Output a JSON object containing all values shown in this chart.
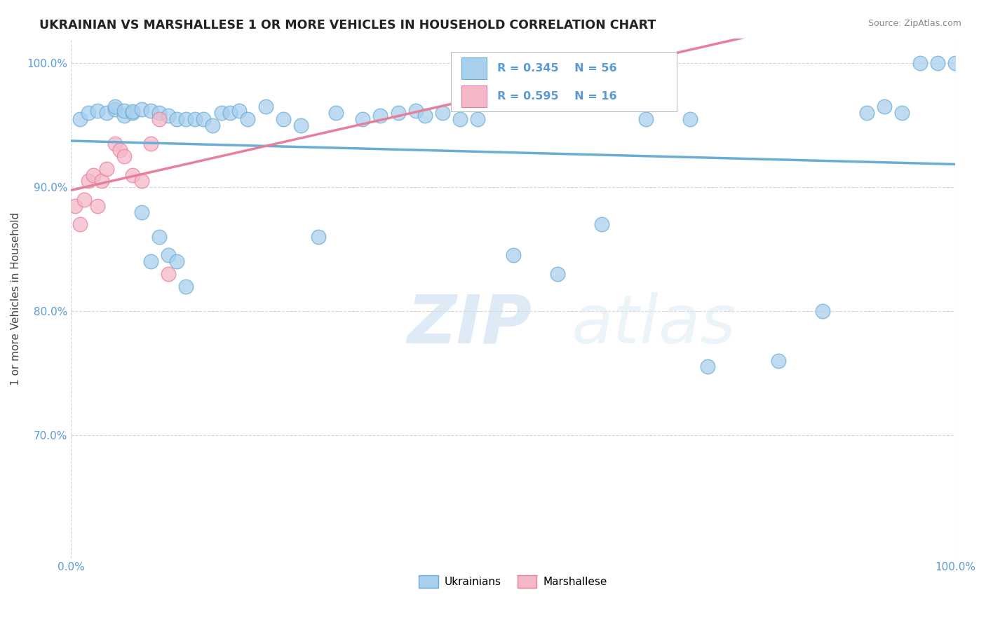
{
  "title": "UKRAINIAN VS MARSHALLESE 1 OR MORE VEHICLES IN HOUSEHOLD CORRELATION CHART",
  "source": "Source: ZipAtlas.com",
  "ylabel": "1 or more Vehicles in Household",
  "R_ukrainian": 0.345,
  "N_ukrainian": 56,
  "R_marshallese": 0.595,
  "N_marshallese": 16,
  "blue_fill": "#A8CFEE",
  "blue_edge": "#6AADD5",
  "pink_fill": "#F4B8C8",
  "pink_edge": "#E87F9A",
  "legend_blue_fill": "#A8CFEE",
  "legend_pink_fill": "#F4B8C8",
  "background": "#FFFFFF",
  "watermark_color": "#D8EEFA",
  "grid_color": "#CCCCCC",
  "tick_color": "#5B9BD5",
  "title_color": "#222222",
  "source_color": "#888888",
  "ylabel_color": "#444444",
  "legend_labels": [
    "Ukrainians",
    "Marshallese"
  ],
  "ukr_x": [
    1,
    2,
    3,
    4,
    5,
    5,
    6,
    6,
    7,
    7,
    8,
    8,
    9,
    9,
    10,
    10,
    11,
    11,
    12,
    12,
    13,
    13,
    14,
    15,
    16,
    17,
    18,
    19,
    20,
    22,
    24,
    26,
    28,
    30,
    33,
    35,
    37,
    39,
    40,
    42,
    44,
    46,
    50,
    55,
    60,
    65,
    70,
    72,
    80,
    85,
    90,
    92,
    94,
    96,
    98,
    100
  ],
  "ukr_y": [
    95.5,
    96.0,
    96.2,
    96.0,
    96.3,
    96.5,
    95.8,
    96.2,
    96.0,
    96.1,
    88.0,
    96.3,
    96.2,
    84.0,
    86.0,
    96.0,
    95.8,
    84.5,
    84.0,
    95.5,
    95.5,
    82.0,
    95.5,
    95.5,
    95.0,
    96.0,
    96.0,
    96.2,
    95.5,
    96.5,
    95.5,
    95.0,
    86.0,
    96.0,
    95.5,
    95.8,
    96.0,
    96.2,
    95.8,
    96.0,
    95.5,
    95.5,
    84.5,
    83.0,
    87.0,
    95.5,
    95.5,
    75.5,
    76.0,
    80.0,
    96.0,
    96.5,
    96.0,
    100.0,
    100.0,
    100.0
  ],
  "mar_x": [
    0.5,
    1.0,
    1.5,
    2.0,
    2.5,
    3.0,
    3.5,
    4.0,
    5.0,
    5.5,
    6.0,
    7.0,
    8.0,
    9.0,
    10.0,
    11.0
  ],
  "mar_y": [
    88.5,
    87.0,
    89.0,
    90.5,
    91.0,
    88.5,
    90.5,
    91.5,
    93.5,
    93.0,
    92.5,
    91.0,
    90.5,
    93.5,
    95.5,
    83.0
  ],
  "ylim_min": 60,
  "ylim_max": 102,
  "xlim_min": 0,
  "xlim_max": 100,
  "yticks": [
    70,
    80,
    90,
    100
  ],
  "ytick_labels": [
    "70.0%",
    "80.0%",
    "90.0%",
    "100.0%"
  ],
  "xticks": [
    0,
    100
  ],
  "xtick_labels": [
    "0.0%",
    "100.0%"
  ]
}
